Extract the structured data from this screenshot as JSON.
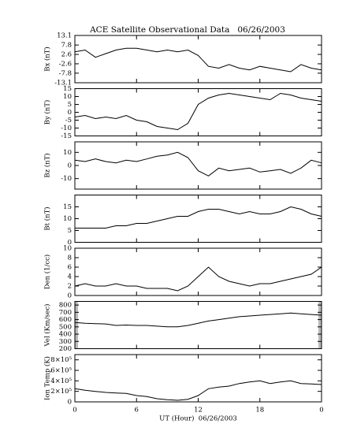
{
  "title": "ACE Satellite Observational Data   06/26/2003",
  "chart_data": [
    {
      "type": "line",
      "ylabel": "Bx (nT)",
      "color": "#000000",
      "x": [
        0,
        1,
        2,
        3,
        4,
        5,
        6,
        7,
        8,
        9,
        10,
        11,
        12,
        13,
        14,
        15,
        16,
        17,
        18,
        19,
        20,
        21,
        22,
        23,
        24
      ],
      "values": [
        4,
        5,
        1,
        3,
        5,
        6,
        6,
        5,
        4,
        5,
        4,
        5,
        2,
        -4,
        -5,
        -3,
        -5,
        -6,
        -4,
        -5,
        -6,
        -7,
        -3,
        -5,
        -6
      ],
      "xlim": [
        0,
        24
      ],
      "ylim": [
        -13.1,
        13.1
      ],
      "yticks": [
        -13.1,
        -7.8,
        -2.6,
        2.6,
        7.8,
        13.1
      ]
    },
    {
      "type": "line",
      "ylabel": "By (nT)",
      "color": "#000000",
      "x": [
        0,
        1,
        2,
        3,
        4,
        5,
        6,
        7,
        8,
        9,
        10,
        11,
        12,
        13,
        14,
        15,
        16,
        17,
        18,
        19,
        20,
        21,
        22,
        23,
        24
      ],
      "values": [
        -3,
        -2,
        -4,
        -3,
        -4,
        -2,
        -5,
        -6,
        -9,
        -10,
        -11,
        -7,
        5,
        9,
        11,
        12,
        11,
        10,
        9,
        8,
        12,
        11,
        9,
        8,
        7
      ],
      "xlim": [
        0,
        24
      ],
      "ylim": [
        -15,
        15
      ],
      "yticks": [
        -15,
        -10,
        -5,
        0,
        5,
        10,
        15
      ]
    },
    {
      "type": "line",
      "ylabel": "Bz (nT)",
      "color": "#000000",
      "x": [
        0,
        1,
        2,
        3,
        4,
        5,
        6,
        7,
        8,
        9,
        10,
        11,
        12,
        13,
        14,
        15,
        16,
        17,
        18,
        19,
        20,
        21,
        22,
        23,
        24
      ],
      "values": [
        4,
        3,
        5,
        3,
        2,
        4,
        3,
        5,
        7,
        8,
        10,
        6,
        -4,
        -8,
        -2,
        -4,
        -3,
        -2,
        -5,
        -4,
        -3,
        -6,
        -2,
        4,
        2
      ],
      "xlim": [
        0,
        24
      ],
      "ylim": [
        -18,
        18
      ],
      "yticks": [
        -10,
        0,
        10
      ]
    },
    {
      "type": "line",
      "ylabel": "Bt (nT)",
      "color": "#000000",
      "x": [
        0,
        1,
        2,
        3,
        4,
        5,
        6,
        7,
        8,
        9,
        10,
        11,
        12,
        13,
        14,
        15,
        16,
        17,
        18,
        19,
        20,
        21,
        22,
        23,
        24
      ],
      "values": [
        6,
        6,
        6,
        6,
        7,
        7,
        8,
        8,
        9,
        10,
        11,
        11,
        13,
        14,
        14,
        13,
        12,
        13,
        12,
        12,
        13,
        15,
        14,
        12,
        11
      ],
      "xlim": [
        0,
        24
      ],
      "ylim": [
        0,
        20
      ],
      "yticks": [
        0,
        5,
        10,
        15
      ]
    },
    {
      "type": "line",
      "ylabel": "Den (1/cc)",
      "color": "#000000",
      "x": [
        0,
        1,
        2,
        3,
        4,
        5,
        6,
        7,
        8,
        9,
        10,
        11,
        12,
        13,
        14,
        15,
        16,
        17,
        18,
        19,
        20,
        21,
        22,
        23,
        24
      ],
      "values": [
        2,
        2.5,
        2,
        2,
        2.5,
        2,
        2,
        1.5,
        1.5,
        1.5,
        1,
        2,
        4,
        6,
        4,
        3,
        2.5,
        2,
        2.5,
        2.5,
        3,
        3.5,
        4,
        4.5,
        6
      ],
      "xlim": [
        0,
        24
      ],
      "ylim": [
        0,
        10
      ],
      "yticks": [
        0,
        2,
        4,
        6,
        8,
        10
      ]
    },
    {
      "type": "line",
      "ylabel": "Vel (Km/sec)",
      "color": "#000000",
      "x": [
        0,
        1,
        2,
        3,
        4,
        5,
        6,
        7,
        8,
        9,
        10,
        11,
        12,
        13,
        14,
        15,
        16,
        17,
        18,
        19,
        20,
        21,
        22,
        23,
        24
      ],
      "values": [
        560,
        550,
        545,
        540,
        520,
        525,
        520,
        520,
        510,
        500,
        500,
        520,
        550,
        580,
        600,
        620,
        640,
        650,
        660,
        670,
        680,
        690,
        680,
        670,
        660
      ],
      "xlim": [
        0,
        24
      ],
      "ylim": [
        200,
        850
      ],
      "yticks": [
        200,
        300,
        400,
        500,
        600,
        700,
        800
      ]
    },
    {
      "type": "line",
      "ylabel": "Ion Temp (K)",
      "color": "#000000",
      "x": [
        0,
        1,
        2,
        3,
        4,
        5,
        6,
        7,
        8,
        9,
        10,
        11,
        12,
        13,
        14,
        15,
        16,
        17,
        18,
        19,
        20,
        21,
        22,
        23,
        24
      ],
      "values": [
        250000,
        220000,
        200000,
        180000,
        170000,
        160000,
        120000,
        100000,
        60000,
        40000,
        30000,
        50000,
        120000,
        250000,
        280000,
        300000,
        350000,
        380000,
        400000,
        350000,
        380000,
        400000,
        350000,
        340000,
        330000
      ],
      "xlim": [
        0,
        24
      ],
      "ylim": [
        0,
        900000
      ],
      "yticks": [
        0,
        {
          "value": 200000,
          "label": "2×10⁵"
        },
        {
          "value": 400000,
          "label": "4×10⁵"
        },
        {
          "value": 600000,
          "label": "6×10⁵"
        },
        {
          "value": 800000,
          "label": "8×10⁵"
        }
      ],
      "xticks": [
        0,
        6,
        12,
        18,
        {
          "value": 24,
          "label": "0"
        }
      ],
      "xlabel": "UT (Hour)  06/26/2003"
    }
  ]
}
